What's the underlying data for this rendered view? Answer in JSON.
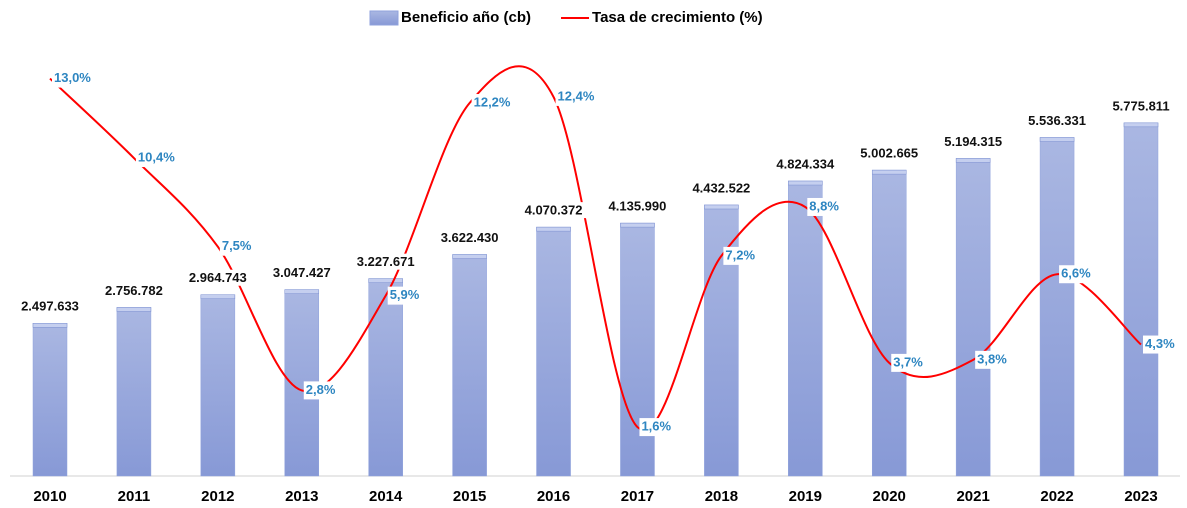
{
  "chart_data": {
    "type": "combo",
    "categories": [
      "2010",
      "2011",
      "2012",
      "2013",
      "2014",
      "2015",
      "2016",
      "2017",
      "2018",
      "2019",
      "2020",
      "2021",
      "2022",
      "2023"
    ],
    "series": [
      {
        "name": "Beneficio año (cb)",
        "type": "bar",
        "color": "#8fa2dc",
        "values": [
          2497633,
          2756782,
          2964743,
          3047427,
          3227671,
          3622430,
          4070372,
          4135990,
          4432522,
          4824334,
          5002665,
          5194315,
          5536331,
          5775811
        ],
        "value_labels": [
          "2.497.633",
          "2.756.782",
          "2.964.743",
          "3.047.427",
          "3.227.671",
          "3.622.430",
          "4.070.372",
          "4.135.990",
          "4.432.522",
          "4.824.334",
          "5.002.665",
          "5.194.315",
          "5.536.331",
          "5.775.811"
        ]
      },
      {
        "name": "Tasa de crecimiento (%)",
        "type": "line",
        "axis": "y2",
        "color": "#ff0000",
        "values": [
          13.0,
          10.4,
          7.5,
          2.8,
          5.9,
          12.2,
          12.4,
          1.6,
          7.2,
          8.8,
          3.7,
          3.8,
          6.6,
          4.3
        ],
        "value_labels": [
          "13,0%",
          "10,4%",
          "7,5%",
          "2,8%",
          "5,9%",
          "12,2%",
          "12,4%",
          "1,6%",
          "7,2%",
          "8,8%",
          "3,7%",
          "3,8%",
          "6,6%",
          "4,3%"
        ]
      }
    ],
    "ylim": [
      0,
      7000000
    ],
    "y2lim": [
      0,
      14
    ],
    "legend": "top"
  }
}
